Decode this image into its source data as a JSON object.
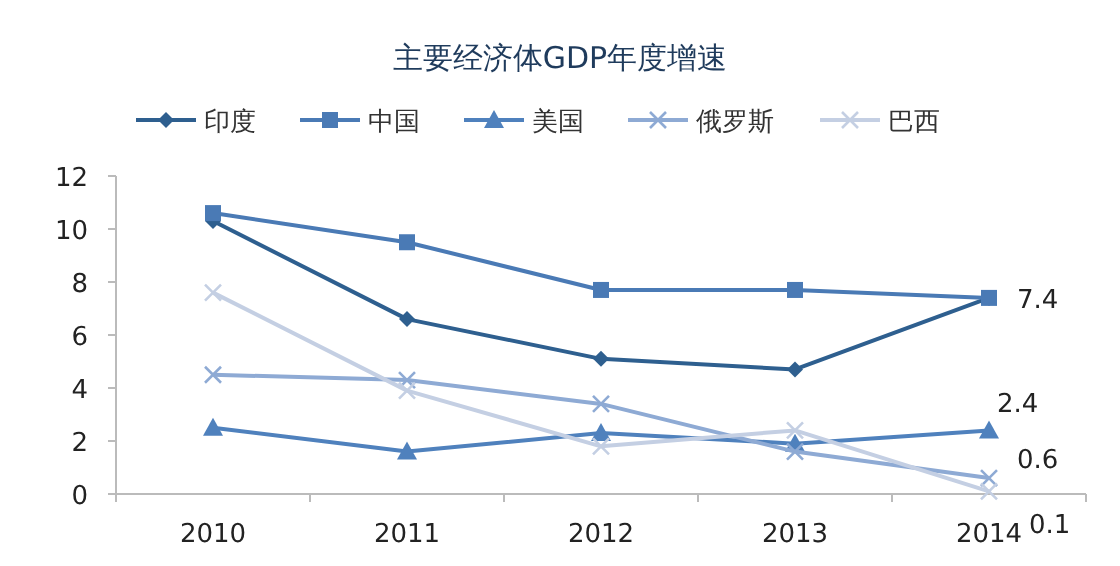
{
  "chart_data": {
    "type": "line",
    "title": "主要经济体GDP年度增速",
    "categories": [
      "2010",
      "2011",
      "2012",
      "2013",
      "2014"
    ],
    "ylim": [
      0,
      12
    ],
    "yticks": [
      0,
      2,
      4,
      6,
      8,
      10,
      12
    ],
    "grid": false,
    "legend": "top",
    "series": [
      {
        "name": "印度",
        "color": "#2e5f8f",
        "marker": "diamond",
        "values": [
          10.3,
          6.6,
          5.1,
          4.7,
          7.4
        ]
      },
      {
        "name": "中国",
        "color": "#4a7ab5",
        "marker": "square",
        "values": [
          10.6,
          9.5,
          7.7,
          7.7,
          7.4
        ],
        "value_labels": [
          null,
          null,
          null,
          null,
          "7.4"
        ]
      },
      {
        "name": "美国",
        "color": "#4f81bd",
        "marker": "triangle",
        "values": [
          2.5,
          1.6,
          2.3,
          1.9,
          2.4
        ],
        "value_labels": [
          null,
          null,
          null,
          null,
          "2.4"
        ]
      },
      {
        "name": "俄罗斯",
        "color": "#8eaad4",
        "marker": "cross",
        "values": [
          4.5,
          4.3,
          3.4,
          1.6,
          0.6
        ],
        "value_labels": [
          null,
          null,
          null,
          null,
          "0.6"
        ]
      },
      {
        "name": "巴西",
        "color": "#c4cfe3",
        "marker": "cross",
        "values": [
          7.6,
          3.9,
          1.8,
          2.4,
          0.1
        ],
        "value_labels": [
          null,
          null,
          null,
          null,
          "0.1"
        ]
      }
    ]
  }
}
